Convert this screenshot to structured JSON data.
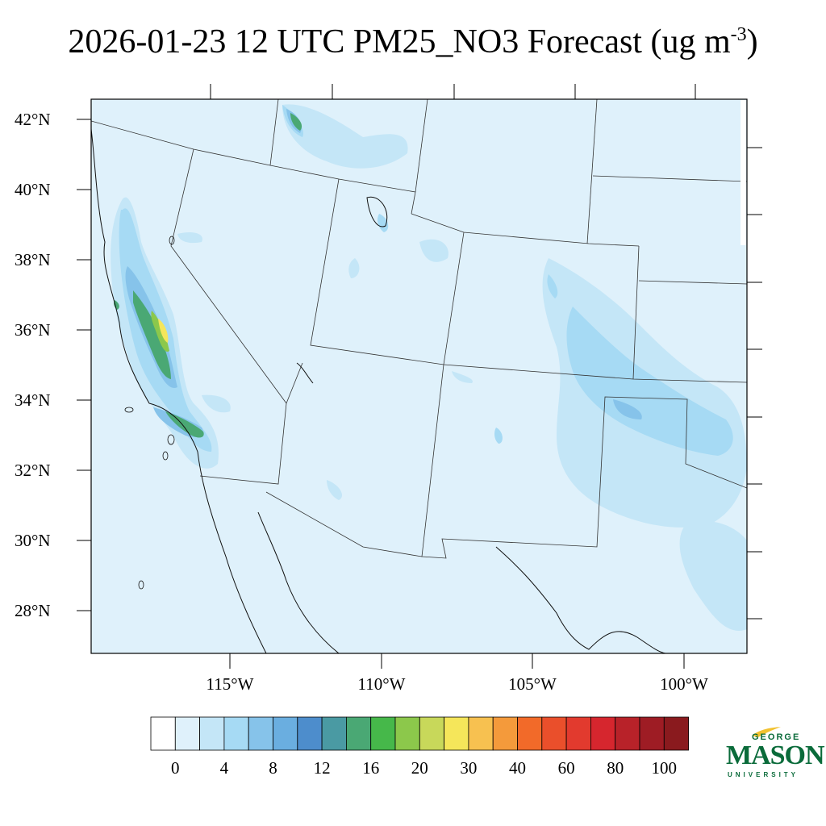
{
  "title": {
    "text": "2026-01-23 12 UTC PM25_NO3 Forecast (ug m",
    "exponent": "-3",
    "close": ")"
  },
  "map": {
    "lat_labels": [
      "42°N",
      "40°N",
      "38°N",
      "36°N",
      "34°N",
      "32°N",
      "30°N",
      "28°N"
    ],
    "lon_labels": [
      "115°W",
      "110°W",
      "105°W",
      "100°W"
    ],
    "background_color": "#dff1fb"
  },
  "colorbar": {
    "colors": [
      "#ffffff",
      "#dff1fb",
      "#c4e6f7",
      "#a6daf4",
      "#86c3ea",
      "#6aaee0",
      "#4d8dcc",
      "#4a9aa3",
      "#4aa874",
      "#46b84a",
      "#8cc84b",
      "#c8d85a",
      "#f5e65a",
      "#f7c150",
      "#f49a3b",
      "#f26a29",
      "#ea4f2b",
      "#e23a2e",
      "#d6262e",
      "#b82229",
      "#9e1c24",
      "#8a1a1e"
    ],
    "tick_labels": [
      "0",
      "4",
      "8",
      "12",
      "16",
      "20",
      "30",
      "40",
      "60",
      "80",
      "100"
    ]
  },
  "logo": {
    "top_text": "GEORGE",
    "main_text": "MASON",
    "bottom_text": "UNIVERSITY"
  }
}
